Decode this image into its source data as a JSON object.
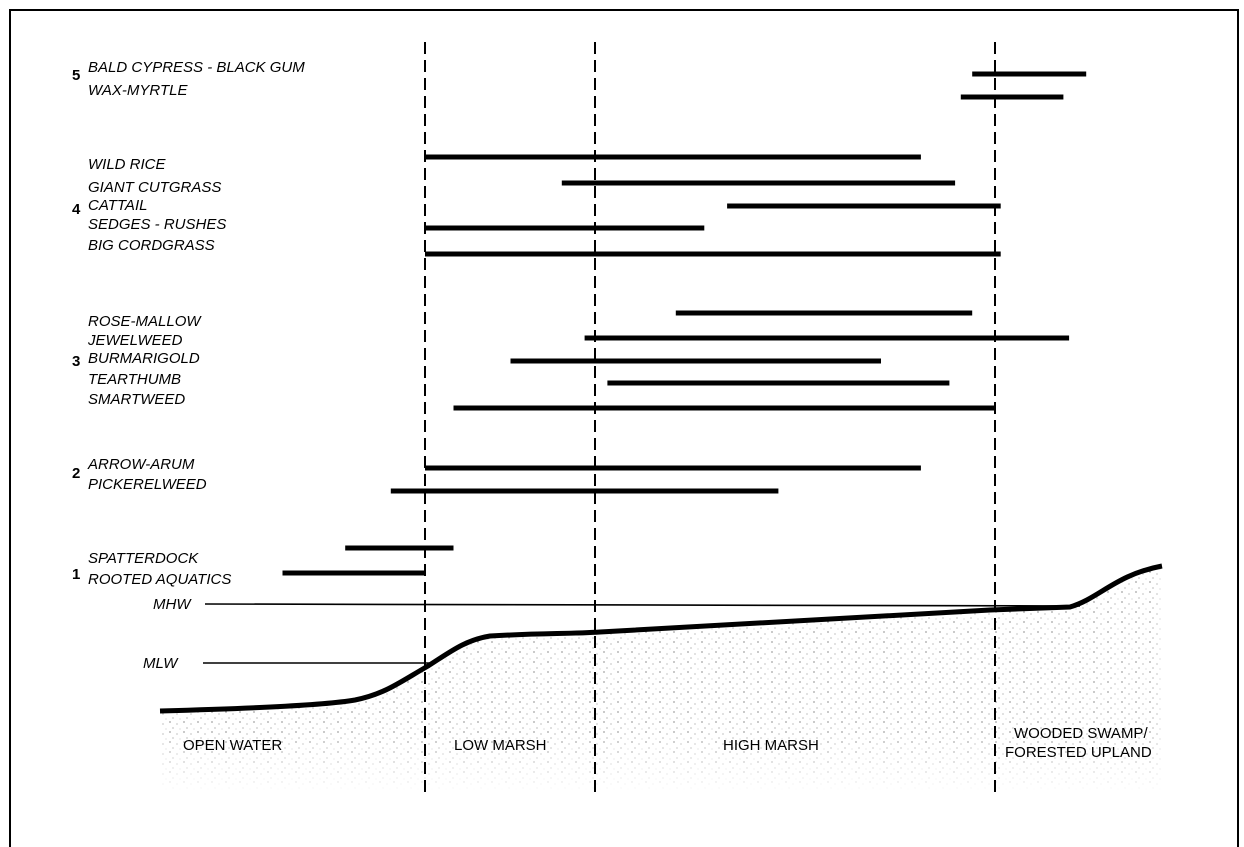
{
  "groups": [
    {
      "number": "5",
      "species": [
        {
          "name": "BALD CYPRESS - BLACK GUM",
          "range": [
            0.96,
            1.16
          ]
        },
        {
          "name": "WAX-MYRTLE",
          "range": [
            0.94,
            1.12
          ]
        }
      ]
    },
    {
      "number": "4",
      "species": [
        {
          "name": "WILD RICE",
          "range": [
            0.0,
            0.87
          ]
        },
        {
          "name": "GIANT CUTGRASS",
          "range": [
            0.24,
            0.93
          ]
        },
        {
          "name": "CATTAIL",
          "range": [
            0.53,
            1.01
          ]
        },
        {
          "name": "SEDGES - RUSHES",
          "range": [
            0.0,
            0.49
          ]
        },
        {
          "name": "BIG CORDGRASS",
          "range": [
            0.0,
            1.01
          ]
        }
      ]
    },
    {
      "number": "3",
      "species": [
        {
          "name": "ROSE-MALLOW",
          "range": [
            0.44,
            0.96
          ]
        },
        {
          "name": "JEWELWEED",
          "range": [
            0.28,
            1.13
          ]
        },
        {
          "name": "BURMARIGOLD",
          "range": [
            0.15,
            0.8
          ]
        },
        {
          "name": "TEARTHUMB",
          "range": [
            0.32,
            0.92
          ]
        },
        {
          "name": "SMARTWEED",
          "range": [
            0.05,
            1.0
          ]
        }
      ]
    },
    {
      "number": "2",
      "species": [
        {
          "name": "ARROW-ARUM",
          "range": [
            0.0,
            0.87
          ]
        },
        {
          "name": "PICKERELWEED",
          "range": [
            -0.06,
            0.62
          ]
        }
      ]
    },
    {
      "number": "1",
      "species": [
        {
          "name": "SPATTERDOCK",
          "range": [
            -0.14,
            0.05
          ]
        },
        {
          "name": "ROOTED AQUATICS",
          "range": [
            -0.25,
            0.0
          ]
        }
      ]
    }
  ],
  "levels": {
    "mhw": "MHW",
    "mlw": "MLW"
  },
  "zones": {
    "open_water": "OPEN WATER",
    "low_marsh": "LOW MARSH",
    "high_marsh": "HIGH MARSH",
    "wooded_line1": "WOODED SWAMP/",
    "wooded_line2": "FORESTED UPLAND"
  }
}
